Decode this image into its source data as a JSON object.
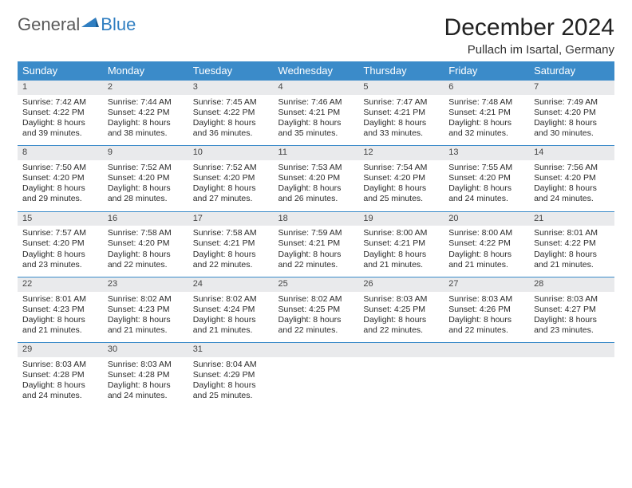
{
  "logo": {
    "text1": "General",
    "text2": "Blue"
  },
  "title": "December 2024",
  "location": "Pullach im Isartal, Germany",
  "colors": {
    "header_bg": "#3b8bc9",
    "header_fg": "#ffffff",
    "daynum_bg": "#e9eaec",
    "row_border": "#3b8bc9",
    "logo_gray": "#5a5a5a",
    "logo_blue": "#2f7ec1"
  },
  "weekdays": [
    "Sunday",
    "Monday",
    "Tuesday",
    "Wednesday",
    "Thursday",
    "Friday",
    "Saturday"
  ],
  "weeks": [
    [
      {
        "n": "1",
        "sr": "7:42 AM",
        "ss": "4:22 PM",
        "dl": "8 hours and 39 minutes."
      },
      {
        "n": "2",
        "sr": "7:44 AM",
        "ss": "4:22 PM",
        "dl": "8 hours and 38 minutes."
      },
      {
        "n": "3",
        "sr": "7:45 AM",
        "ss": "4:22 PM",
        "dl": "8 hours and 36 minutes."
      },
      {
        "n": "4",
        "sr": "7:46 AM",
        "ss": "4:21 PM",
        "dl": "8 hours and 35 minutes."
      },
      {
        "n": "5",
        "sr": "7:47 AM",
        "ss": "4:21 PM",
        "dl": "8 hours and 33 minutes."
      },
      {
        "n": "6",
        "sr": "7:48 AM",
        "ss": "4:21 PM",
        "dl": "8 hours and 32 minutes."
      },
      {
        "n": "7",
        "sr": "7:49 AM",
        "ss": "4:20 PM",
        "dl": "8 hours and 30 minutes."
      }
    ],
    [
      {
        "n": "8",
        "sr": "7:50 AM",
        "ss": "4:20 PM",
        "dl": "8 hours and 29 minutes."
      },
      {
        "n": "9",
        "sr": "7:52 AM",
        "ss": "4:20 PM",
        "dl": "8 hours and 28 minutes."
      },
      {
        "n": "10",
        "sr": "7:52 AM",
        "ss": "4:20 PM",
        "dl": "8 hours and 27 minutes."
      },
      {
        "n": "11",
        "sr": "7:53 AM",
        "ss": "4:20 PM",
        "dl": "8 hours and 26 minutes."
      },
      {
        "n": "12",
        "sr": "7:54 AM",
        "ss": "4:20 PM",
        "dl": "8 hours and 25 minutes."
      },
      {
        "n": "13",
        "sr": "7:55 AM",
        "ss": "4:20 PM",
        "dl": "8 hours and 24 minutes."
      },
      {
        "n": "14",
        "sr": "7:56 AM",
        "ss": "4:20 PM",
        "dl": "8 hours and 24 minutes."
      }
    ],
    [
      {
        "n": "15",
        "sr": "7:57 AM",
        "ss": "4:20 PM",
        "dl": "8 hours and 23 minutes."
      },
      {
        "n": "16",
        "sr": "7:58 AM",
        "ss": "4:20 PM",
        "dl": "8 hours and 22 minutes."
      },
      {
        "n": "17",
        "sr": "7:58 AM",
        "ss": "4:21 PM",
        "dl": "8 hours and 22 minutes."
      },
      {
        "n": "18",
        "sr": "7:59 AM",
        "ss": "4:21 PM",
        "dl": "8 hours and 22 minutes."
      },
      {
        "n": "19",
        "sr": "8:00 AM",
        "ss": "4:21 PM",
        "dl": "8 hours and 21 minutes."
      },
      {
        "n": "20",
        "sr": "8:00 AM",
        "ss": "4:22 PM",
        "dl": "8 hours and 21 minutes."
      },
      {
        "n": "21",
        "sr": "8:01 AM",
        "ss": "4:22 PM",
        "dl": "8 hours and 21 minutes."
      }
    ],
    [
      {
        "n": "22",
        "sr": "8:01 AM",
        "ss": "4:23 PM",
        "dl": "8 hours and 21 minutes."
      },
      {
        "n": "23",
        "sr": "8:02 AM",
        "ss": "4:23 PM",
        "dl": "8 hours and 21 minutes."
      },
      {
        "n": "24",
        "sr": "8:02 AM",
        "ss": "4:24 PM",
        "dl": "8 hours and 21 minutes."
      },
      {
        "n": "25",
        "sr": "8:02 AM",
        "ss": "4:25 PM",
        "dl": "8 hours and 22 minutes."
      },
      {
        "n": "26",
        "sr": "8:03 AM",
        "ss": "4:25 PM",
        "dl": "8 hours and 22 minutes."
      },
      {
        "n": "27",
        "sr": "8:03 AM",
        "ss": "4:26 PM",
        "dl": "8 hours and 22 minutes."
      },
      {
        "n": "28",
        "sr": "8:03 AM",
        "ss": "4:27 PM",
        "dl": "8 hours and 23 minutes."
      }
    ],
    [
      {
        "n": "29",
        "sr": "8:03 AM",
        "ss": "4:28 PM",
        "dl": "8 hours and 24 minutes."
      },
      {
        "n": "30",
        "sr": "8:03 AM",
        "ss": "4:28 PM",
        "dl": "8 hours and 24 minutes."
      },
      {
        "n": "31",
        "sr": "8:04 AM",
        "ss": "4:29 PM",
        "dl": "8 hours and 25 minutes."
      },
      null,
      null,
      null,
      null
    ]
  ],
  "labels": {
    "sunrise": "Sunrise: ",
    "sunset": "Sunset: ",
    "daylight": "Daylight: "
  }
}
